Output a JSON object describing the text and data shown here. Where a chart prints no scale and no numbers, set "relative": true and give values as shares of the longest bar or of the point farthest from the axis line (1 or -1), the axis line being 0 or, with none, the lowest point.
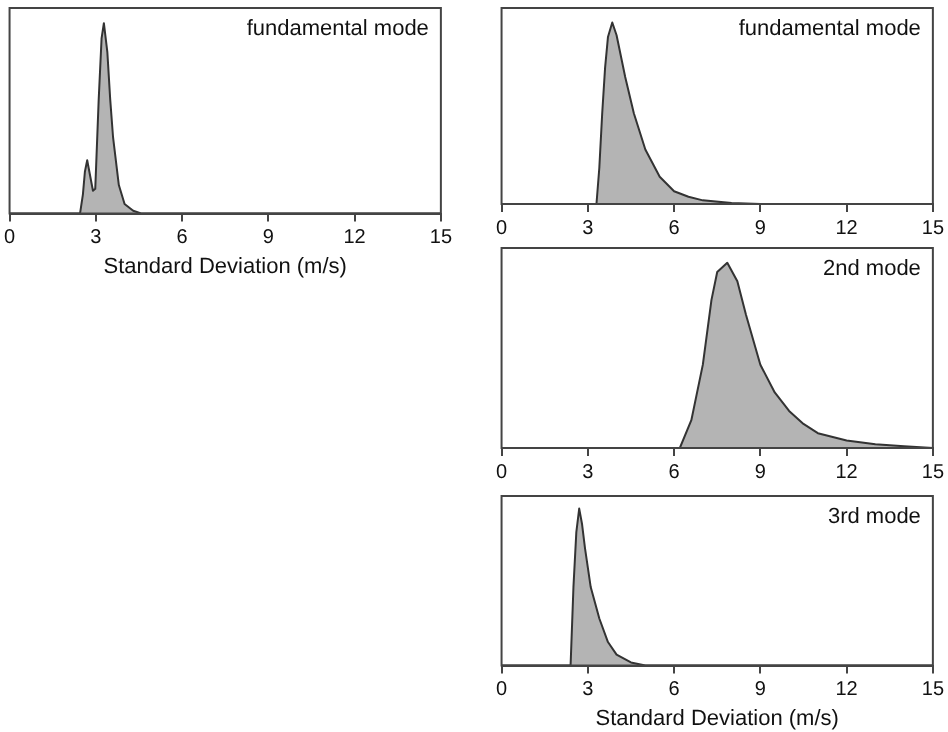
{
  "chart_data": [
    {
      "type": "area",
      "relative": true,
      "xlabel": "Standard Deviation (m/s)",
      "annotations": [
        "fundamental mode"
      ],
      "xlim": [
        0,
        15
      ],
      "xticks": [
        0,
        3,
        6,
        9,
        12,
        15
      ],
      "color": "#b4b4b4",
      "x": [
        0,
        2.45,
        2.55,
        2.62,
        2.7,
        2.8,
        2.9,
        2.98,
        3.1,
        3.2,
        3.28,
        3.4,
        3.5,
        3.6,
        3.8,
        4.0,
        4.3,
        4.6,
        15
      ],
      "values": [
        0,
        0,
        0.1,
        0.22,
        0.28,
        0.2,
        0.12,
        0.13,
        0.6,
        0.92,
        1.0,
        0.85,
        0.6,
        0.4,
        0.15,
        0.05,
        0.015,
        0,
        0
      ]
    },
    {
      "type": "area",
      "relative": true,
      "annotations": [
        "fundamental mode"
      ],
      "xlim": [
        0,
        15
      ],
      "xticks": [
        0,
        3,
        6,
        9,
        12,
        15
      ],
      "color": "#b4b4b4",
      "x": [
        0,
        3.3,
        3.4,
        3.5,
        3.6,
        3.7,
        3.85,
        4.0,
        4.3,
        4.6,
        5.0,
        5.5,
        6.0,
        6.5,
        7.0,
        8.0,
        9.0,
        15
      ],
      "values": [
        0,
        0,
        0.2,
        0.5,
        0.75,
        0.92,
        1.0,
        0.93,
        0.7,
        0.5,
        0.3,
        0.15,
        0.07,
        0.04,
        0.02,
        0.005,
        0,
        0
      ]
    },
    {
      "type": "area",
      "relative": true,
      "annotations": [
        "2nd mode"
      ],
      "xlim": [
        0,
        15
      ],
      "xticks": [
        0,
        3,
        6,
        9,
        12,
        15
      ],
      "color": "#b4b4b4",
      "x": [
        0,
        6.2,
        6.6,
        7.0,
        7.3,
        7.5,
        7.85,
        8.2,
        8.5,
        9.0,
        9.5,
        10.0,
        10.5,
        11.0,
        12.0,
        13.0,
        14.0,
        15
      ],
      "values": [
        0,
        0,
        0.15,
        0.45,
        0.8,
        0.95,
        1.0,
        0.9,
        0.72,
        0.45,
        0.3,
        0.2,
        0.13,
        0.08,
        0.04,
        0.02,
        0.01,
        0
      ]
    },
    {
      "type": "area",
      "relative": true,
      "xlabel": "Standard Deviation (m/s)",
      "annotations": [
        "3rd mode"
      ],
      "xlim": [
        0,
        15
      ],
      "xticks": [
        0,
        3,
        6,
        9,
        12,
        15
      ],
      "color": "#b4b4b4",
      "x": [
        0,
        2.4,
        2.5,
        2.6,
        2.7,
        2.8,
        2.9,
        3.1,
        3.4,
        3.7,
        4.0,
        4.5,
        5.0,
        15
      ],
      "values": [
        0,
        0,
        0.5,
        0.85,
        1.0,
        0.9,
        0.75,
        0.5,
        0.3,
        0.15,
        0.07,
        0.02,
        0,
        0
      ]
    }
  ]
}
